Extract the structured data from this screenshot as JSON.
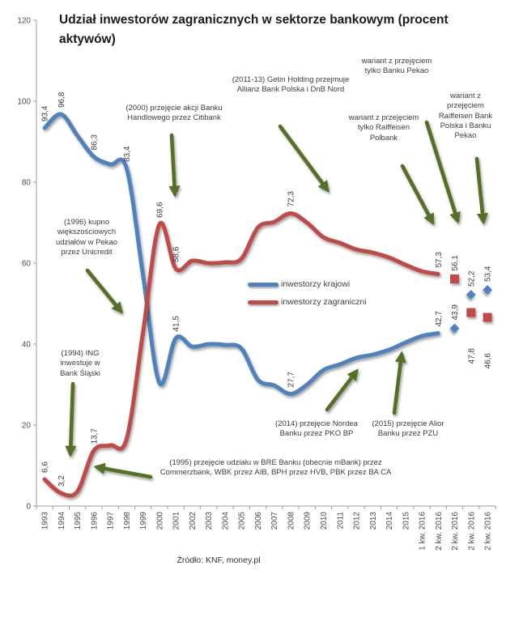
{
  "colors": {
    "domestic_blue": "#4F81BD",
    "foreign_red": "#BE4B48",
    "arrow_green": "#546F28",
    "axis_gray": "#9d9d9d"
  },
  "chart_data": {
    "type": "line",
    "title": "Udział inwestorów zagranicznych w sektorze bankowym (procent aktywów)",
    "source": "Źródło: KNF, money.pl",
    "ylim": [
      0,
      120
    ],
    "yticks": [
      0,
      20,
      40,
      60,
      80,
      100,
      120
    ],
    "grid": false,
    "legend_position": "center",
    "categories": [
      "1993",
      "1994",
      "1995",
      "1996",
      "1997",
      "1998",
      "1999",
      "2000",
      "2001",
      "2002",
      "2003",
      "2004",
      "2005",
      "2006",
      "2007",
      "2008",
      "2009",
      "2010",
      "2011",
      "2012",
      "2013",
      "2014",
      "2015",
      "1 kw. 2016",
      "2 kw. 2016",
      "2 kw. 2016",
      "2 kw. 2016",
      "2 kw. 2016"
    ],
    "legend": [
      {
        "name": "inwestorzy krajowi",
        "color": "#4F81BD"
      },
      {
        "name": "inwestorzy zagraniczni",
        "color": "#BE4B48"
      }
    ],
    "series": [
      {
        "name": "inwestorzy krajowi",
        "color": "#4F81BD",
        "values": [
          93.4,
          96.8,
          91.5,
          86.3,
          84.4,
          83.4,
          57.0,
          30.4,
          41.5,
          39.4,
          40.0,
          39.8,
          38.9,
          31.2,
          29.8,
          27.7,
          30.0,
          33.6,
          35.0,
          36.6,
          37.4,
          38.6,
          40.4,
          42.0,
          42.7
        ]
      },
      {
        "name": "inwestorzy zagraniczni",
        "color": "#BE4B48",
        "values": [
          6.6,
          3.2,
          3.6,
          13.7,
          15.0,
          16.6,
          43.0,
          69.6,
          58.6,
          60.6,
          60.0,
          60.2,
          61.1,
          68.8,
          70.2,
          72.3,
          70.0,
          66.4,
          65.0,
          63.4,
          62.6,
          61.4,
          59.6,
          58.0,
          57.3
        ]
      }
    ],
    "point_labels": [
      {
        "series": 0,
        "cat": 0,
        "text": "93,4"
      },
      {
        "series": 0,
        "cat": 1,
        "text": "96,8"
      },
      {
        "series": 0,
        "cat": 3,
        "text": "86,3"
      },
      {
        "series": 0,
        "cat": 5,
        "text": "83,4"
      },
      {
        "series": 0,
        "cat": 8,
        "text": "41,5"
      },
      {
        "series": 0,
        "cat": 15,
        "text": "27,7"
      },
      {
        "series": 0,
        "cat": 24,
        "text": "42,7"
      },
      {
        "series": 1,
        "cat": 0,
        "text": "6,6"
      },
      {
        "series": 1,
        "cat": 1,
        "text": "3,2"
      },
      {
        "series": 1,
        "cat": 3,
        "text": "13,7"
      },
      {
        "series": 1,
        "cat": 7,
        "text": "69,6"
      },
      {
        "series": 1,
        "cat": 8,
        "text": "58,6"
      },
      {
        "series": 1,
        "cat": 15,
        "text": "72,3"
      },
      {
        "series": 1,
        "cat": 24,
        "text": "57,3"
      }
    ],
    "scenario_markers": [
      {
        "cat": 25,
        "shape": "square",
        "series": 1,
        "value": 56.1,
        "label": "56,1",
        "label_side": "above"
      },
      {
        "cat": 25,
        "shape": "diamond",
        "series": 0,
        "value": 43.9,
        "label": "43,9",
        "label_side": "above"
      },
      {
        "cat": 26,
        "shape": "diamond",
        "series": 0,
        "value": 52.2,
        "label": "52,2",
        "label_side": "above"
      },
      {
        "cat": 26,
        "shape": "square",
        "series": 1,
        "value": 47.8,
        "label": "47,8",
        "label_side": "below"
      },
      {
        "cat": 27,
        "shape": "diamond",
        "series": 0,
        "value": 53.4,
        "label": "53,4",
        "label_side": "above"
      },
      {
        "cat": 27,
        "shape": "square",
        "series": 1,
        "value": 46.6,
        "label": "46,6",
        "label_side": "below"
      }
    ],
    "annotations": {
      "ing1994": "(1994) ING inwestuje w Bank Śląski",
      "bre1995": "(1995) przejęcie udziału w BRE Banku (obecnie mBank) przez Commerzbank, WBK przez AIB, BPH przez HVB, PBK przez BA CA",
      "unicredit1996": "(1996) kupno większościowych udziałów w Pekao przez Unicredit",
      "citibank2000": "(2000) przejęcie akcji Banku Handlowego przez Citibank",
      "getin2011": "(2011-13) Getin Holding przejmuje Allianz Bank Polska i DnB Nord",
      "nordea2014": "(2014) przejęcie Nordea Banku przez PKO BP",
      "alior2015": "(2015) przejęcie Alior Banku przez PZU",
      "wariant_pekao": "wariant z przejęciem tylko Banku Pekao",
      "wariant_raiffeisen": "wariant z przejęciem tylko Raiffeisen Polbank",
      "wariant_both": "wariant z przejęciem Raiffeisen Bank Polska i Banku Pekao"
    }
  }
}
